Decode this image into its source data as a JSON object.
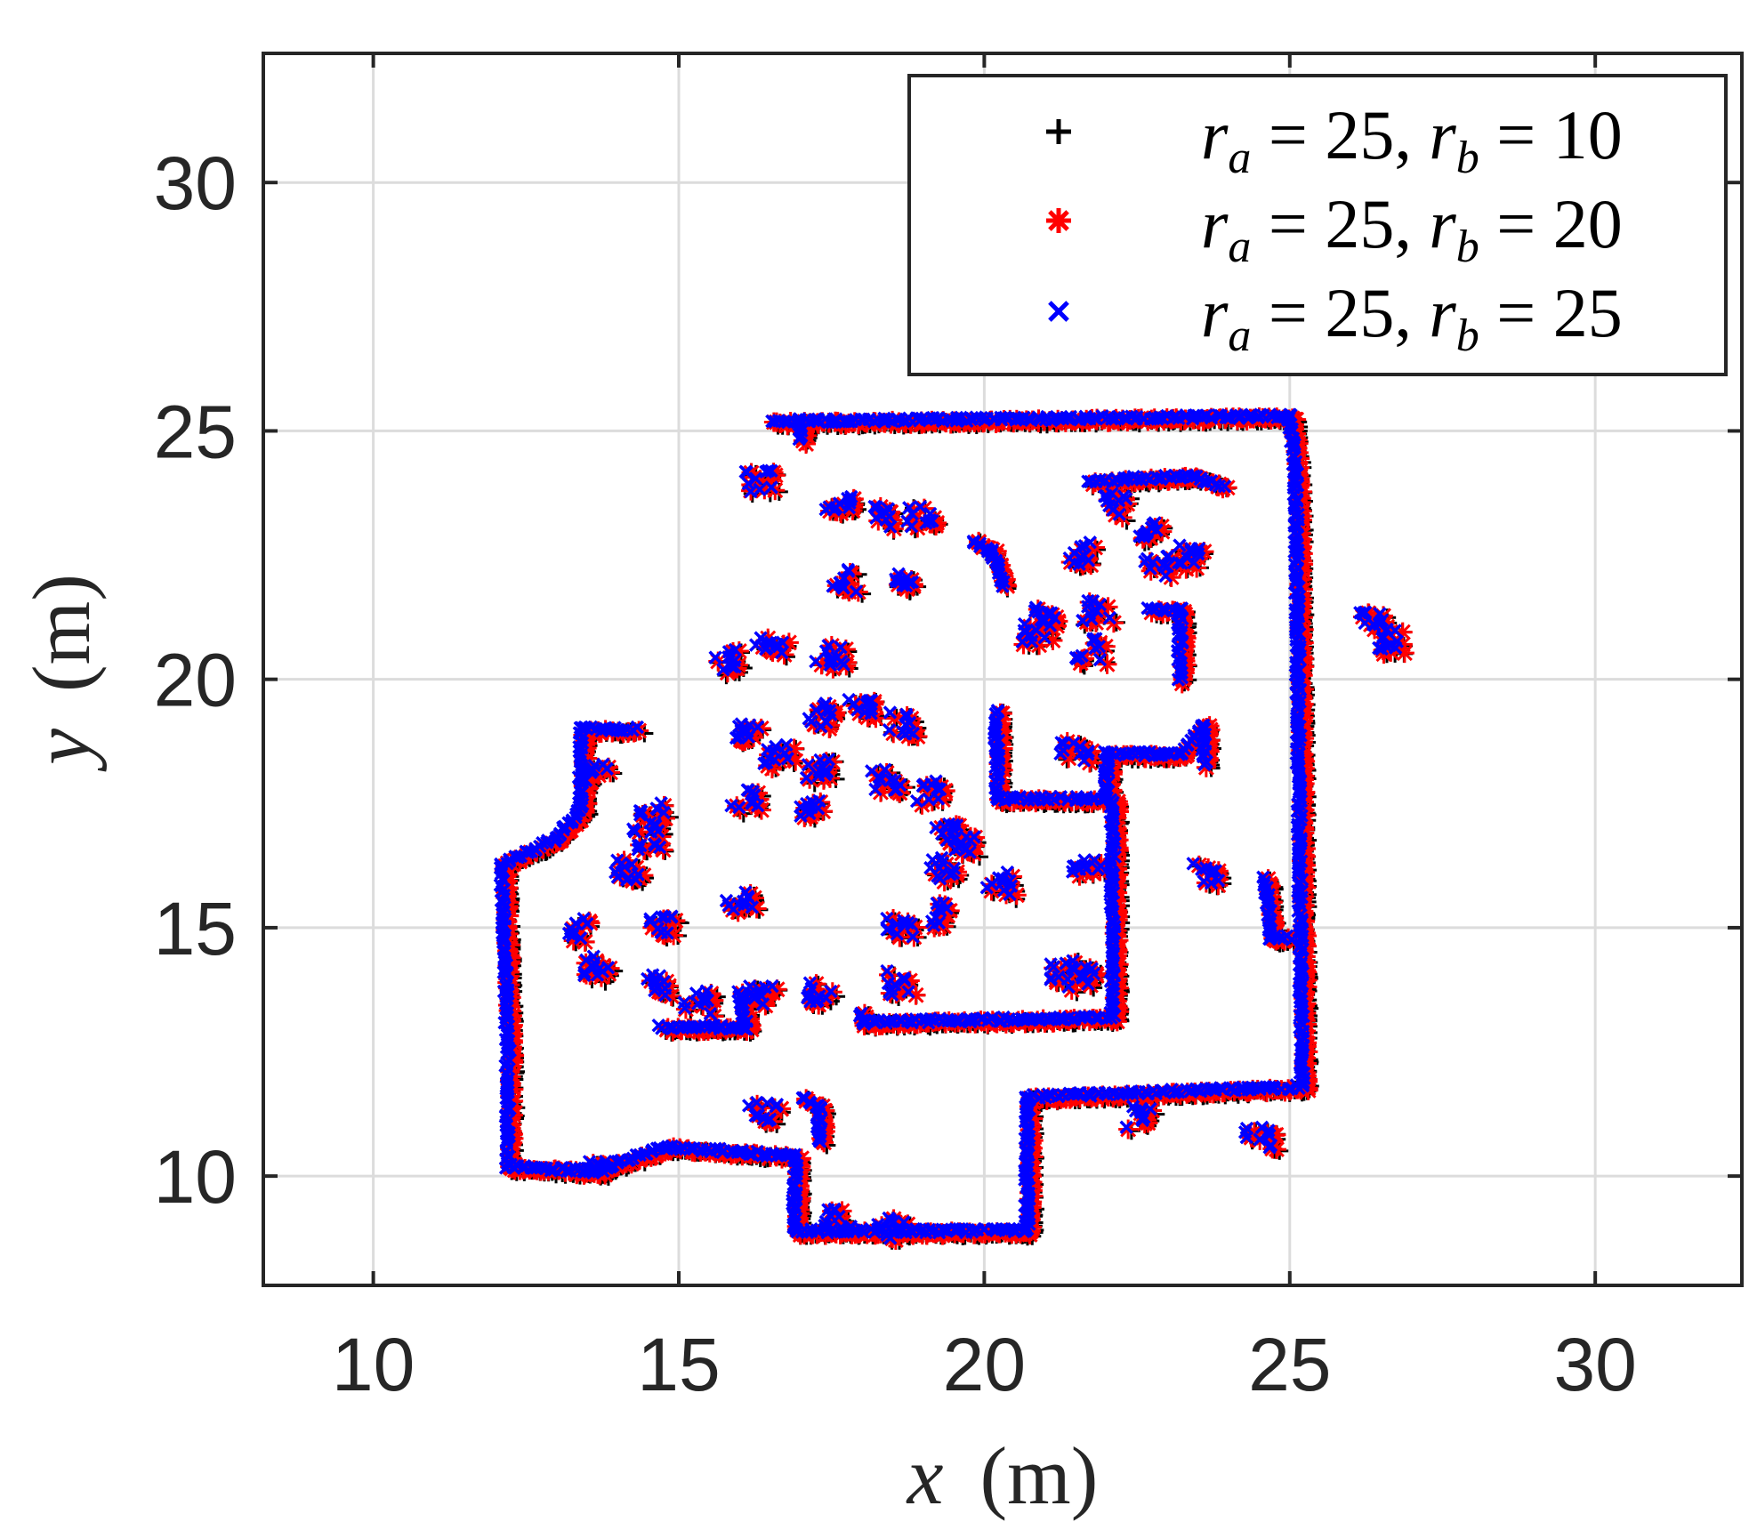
{
  "chart_data": {
    "type": "scatter",
    "xlabel_var": "x",
    "xlabel_unit": "(m)",
    "ylabel_var": "y",
    "ylabel_unit": "(m)",
    "xlim": [
      8.2,
      32.4
    ],
    "ylim": [
      7.8,
      32.6
    ],
    "xticks": [
      10,
      15,
      20,
      25,
      30
    ],
    "yticks": [
      10,
      15,
      20,
      25,
      30
    ],
    "grid": true,
    "legend_position": "top-right",
    "series": [
      {
        "name": "r_a = 25, r_b = 10",
        "label_a": "25",
        "label_b": "10",
        "marker": "plus",
        "color": "#000000"
      },
      {
        "name": "r_a = 25, r_b = 20",
        "label_a": "25",
        "label_b": "20",
        "marker": "asterisk",
        "color": "#ff0000"
      },
      {
        "name": "r_a = 25, r_b = 25",
        "label_a": "25",
        "label_b": "25",
        "marker": "cross",
        "color": "#0000ff"
      }
    ],
    "wall_polylines": [
      [
        [
          17.0,
          25.2
        ],
        [
          25.0,
          25.3
        ],
        [
          25.1,
          24.0
        ],
        [
          25.2,
          11.8
        ],
        [
          20.7,
          11.6
        ],
        [
          20.7,
          8.9
        ],
        [
          16.9,
          8.9
        ],
        [
          16.9,
          10.4
        ],
        [
          14.8,
          10.6
        ],
        [
          13.6,
          10.1
        ],
        [
          12.2,
          10.2
        ],
        [
          12.2,
          12.5
        ],
        [
          12.1,
          16.3
        ],
        [
          13.0,
          16.8
        ],
        [
          13.4,
          17.4
        ],
        [
          13.4,
          19.0
        ],
        [
          14.3,
          19.0
        ]
      ],
      [
        [
          16.5,
          25.2
        ],
        [
          17.0,
          25.2
        ],
        [
          17.0,
          24.8
        ]
      ],
      [
        [
          24.6,
          16.0
        ],
        [
          24.7,
          14.8
        ],
        [
          25.0,
          14.8
        ]
      ],
      [
        [
          20.2,
          19.4
        ],
        [
          20.2,
          17.6
        ],
        [
          22.0,
          17.6
        ],
        [
          22.0,
          18.5
        ],
        [
          23.2,
          18.5
        ],
        [
          23.6,
          19.1
        ],
        [
          23.6,
          18.3
        ]
      ],
      [
        [
          22.1,
          17.6
        ],
        [
          22.1,
          13.2
        ],
        [
          18.0,
          13.1
        ],
        [
          18.0,
          13.3
        ]
      ],
      [
        [
          23.2,
          20.0
        ],
        [
          23.2,
          21.4
        ],
        [
          22.7,
          21.4
        ]
      ],
      [
        [
          21.7,
          24.0
        ],
        [
          23.4,
          24.1
        ],
        [
          23.9,
          23.9
        ]
      ],
      [
        [
          19.8,
          22.8
        ],
        [
          20.1,
          22.6
        ],
        [
          20.3,
          21.9
        ]
      ],
      [
        [
          14.7,
          13.0
        ],
        [
          16.1,
          13.0
        ],
        [
          16.0,
          13.7
        ]
      ],
      [
        [
          17.0,
          11.6
        ],
        [
          17.3,
          11.4
        ],
        [
          17.3,
          10.7
        ]
      ]
    ],
    "clusters": [
      [
        23.65,
        16.1
      ],
      [
        17.6,
        23.5
      ],
      [
        17.7,
        22.0
      ],
      [
        18.6,
        22.0
      ],
      [
        16.3,
        24.0
      ],
      [
        19.0,
        23.3
      ],
      [
        22.2,
        23.5
      ],
      [
        22.8,
        22.3
      ],
      [
        21.5,
        22.5
      ],
      [
        21.0,
        21.3
      ],
      [
        21.7,
        20.6
      ],
      [
        20.8,
        20.9
      ],
      [
        21.8,
        21.4
      ],
      [
        22.6,
        22.9
      ],
      [
        23.3,
        22.5
      ],
      [
        17.5,
        20.5
      ],
      [
        17.3,
        19.3
      ],
      [
        18.0,
        19.5
      ],
      [
        18.6,
        19.1
      ],
      [
        16.6,
        18.5
      ],
      [
        17.3,
        18.2
      ],
      [
        18.4,
        18.0
      ],
      [
        19.1,
        17.7
      ],
      [
        16.1,
        17.6
      ],
      [
        17.1,
        17.4
      ],
      [
        16.1,
        19.0
      ],
      [
        19.7,
        16.7
      ],
      [
        20.2,
        15.9
      ],
      [
        19.2,
        15.3
      ],
      [
        16.0,
        15.5
      ],
      [
        13.6,
        18.1
      ],
      [
        14.5,
        16.8
      ],
      [
        14.5,
        17.3
      ],
      [
        13.6,
        14.2
      ],
      [
        14.7,
        15.1
      ],
      [
        13.4,
        15.0
      ],
      [
        14.6,
        13.8
      ],
      [
        15.3,
        13.5
      ],
      [
        16.4,
        13.7
      ],
      [
        17.3,
        13.7
      ],
      [
        18.6,
        13.9
      ],
      [
        18.6,
        15.0
      ],
      [
        21.7,
        16.2
      ],
      [
        21.3,
        14.2
      ],
      [
        21.6,
        14.0
      ],
      [
        21.5,
        18.6
      ],
      [
        26.3,
        21.3
      ],
      [
        26.6,
        20.8
      ],
      [
        24.5,
        10.8
      ],
      [
        22.5,
        11.2
      ],
      [
        16.4,
        11.3
      ],
      [
        17.6,
        9.1
      ],
      [
        18.5,
        9.0
      ],
      [
        13.6,
        10.1
      ],
      [
        14.2,
        16.2
      ],
      [
        15.7,
        20.4
      ],
      [
        16.5,
        20.7
      ],
      [
        18.4,
        23.3
      ],
      [
        19.3,
        16.2
      ],
      [
        19.4,
        16.9
      ]
    ]
  }
}
